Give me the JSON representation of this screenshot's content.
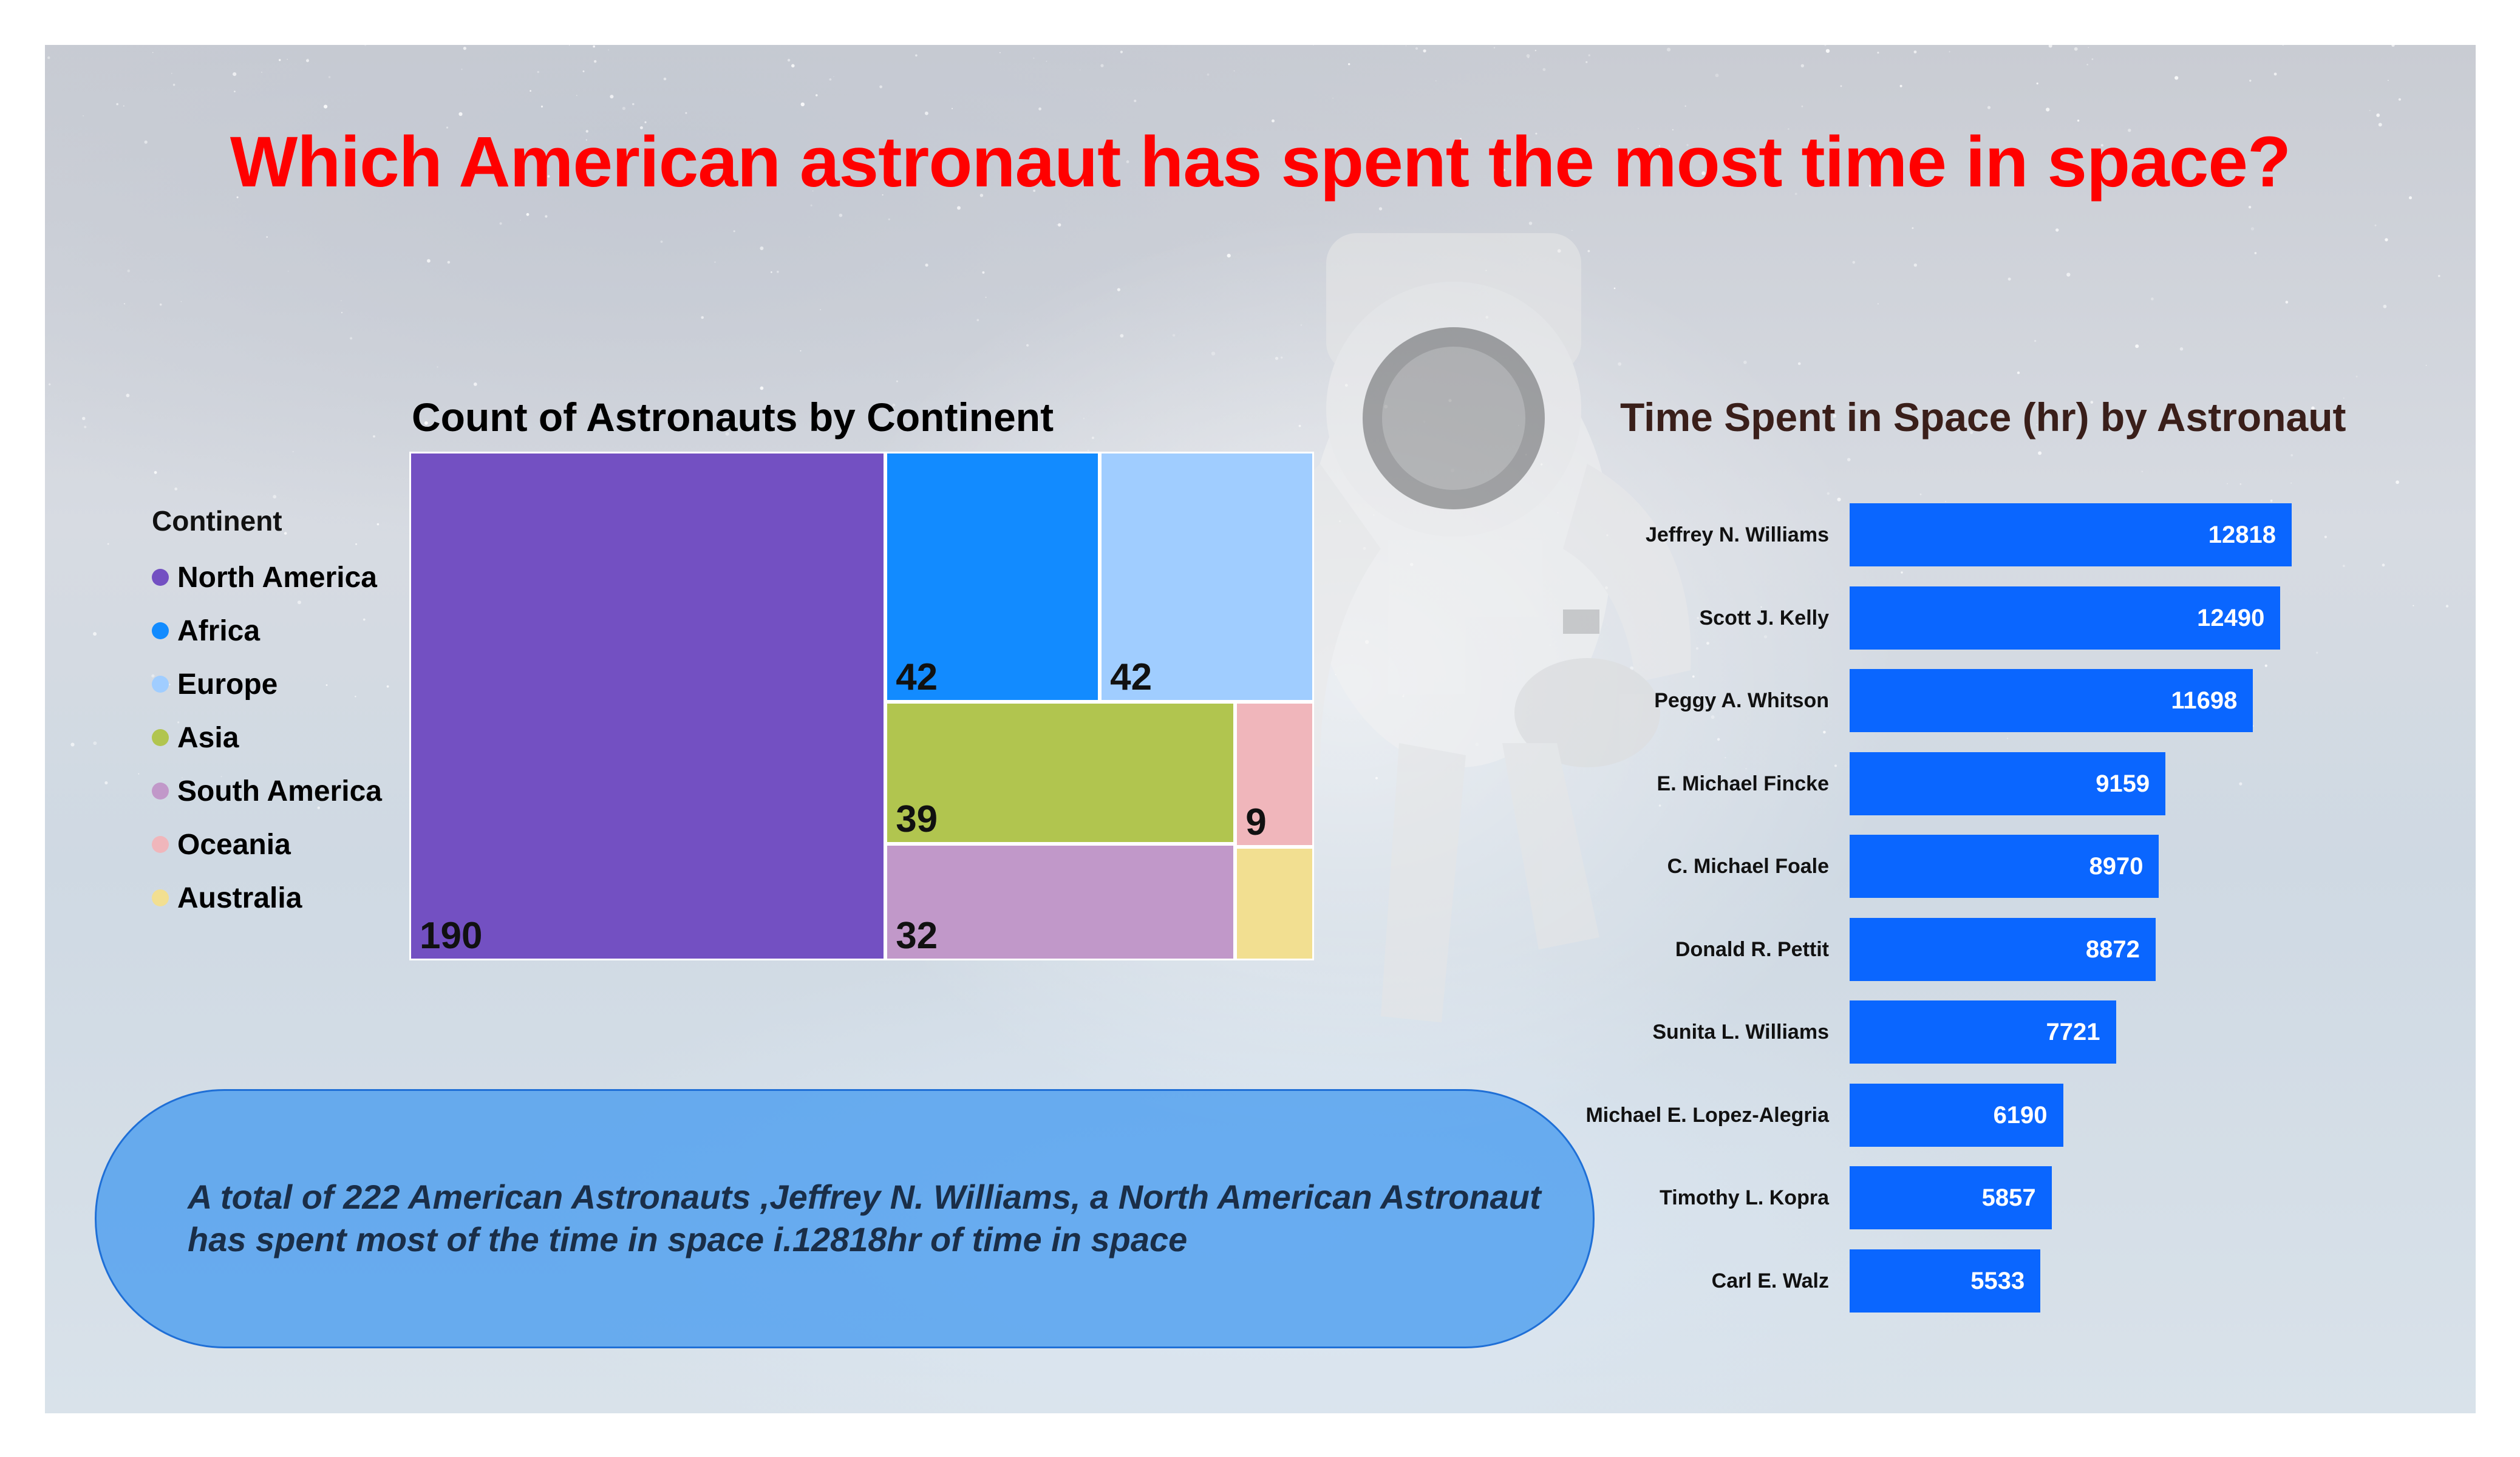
{
  "title": "Which American astronaut has spent the most time in space?",
  "colors": {
    "title": "#ff0000",
    "bar": "#0a66ff",
    "note_bg": "#5aa2ef"
  },
  "legend": {
    "title": "Continent",
    "items": [
      {
        "label": "North America",
        "color": "#7350c2"
      },
      {
        "label": "Africa",
        "color": "#128bff"
      },
      {
        "label": "Europe",
        "color": "#a0cdff"
      },
      {
        "label": "Asia",
        "color": "#b1c54f"
      },
      {
        "label": "South America",
        "color": "#c198c9"
      },
      {
        "label": "Oceania",
        "color": "#f0b6bb"
      },
      {
        "label": "Australia",
        "color": "#f2df91"
      }
    ]
  },
  "note": {
    "text": "A total of  222 American Astronauts ,Jeffrey N. Williams, a North American Astronaut has spent most of the time in space i.12818hr of time in space"
  },
  "chart_data": [
    {
      "type": "treemap",
      "title": "Count of Astronauts by Continent",
      "legend_placement": "left",
      "categories": [
        "North America",
        "Africa",
        "Europe",
        "Asia",
        "South America",
        "Oceania",
        "Australia"
      ],
      "values": [
        190,
        42,
        42,
        39,
        32,
        9,
        null
      ],
      "data_labels": [
        "190",
        "42",
        "42",
        "39",
        "32",
        "9",
        ""
      ]
    },
    {
      "type": "bar",
      "orientation": "horizontal",
      "title": "Time Spent in Space (hr) by Astronaut",
      "categories": [
        "Jeffrey N. Williams",
        "Scott J. Kelly",
        "Peggy A. Whitson",
        "E. Michael Fincke",
        "C. Michael Foale",
        "Donald R. Pettit",
        "Sunita L. Williams",
        "Michael E. Lopez-Alegria",
        "Timothy L. Kopra",
        "Carl E. Walz"
      ],
      "values": [
        12818,
        12490,
        11698,
        9159,
        8970,
        8872,
        7721,
        6190,
        5857,
        5533
      ],
      "xlim": [
        0,
        12818
      ],
      "grid": false
    }
  ]
}
